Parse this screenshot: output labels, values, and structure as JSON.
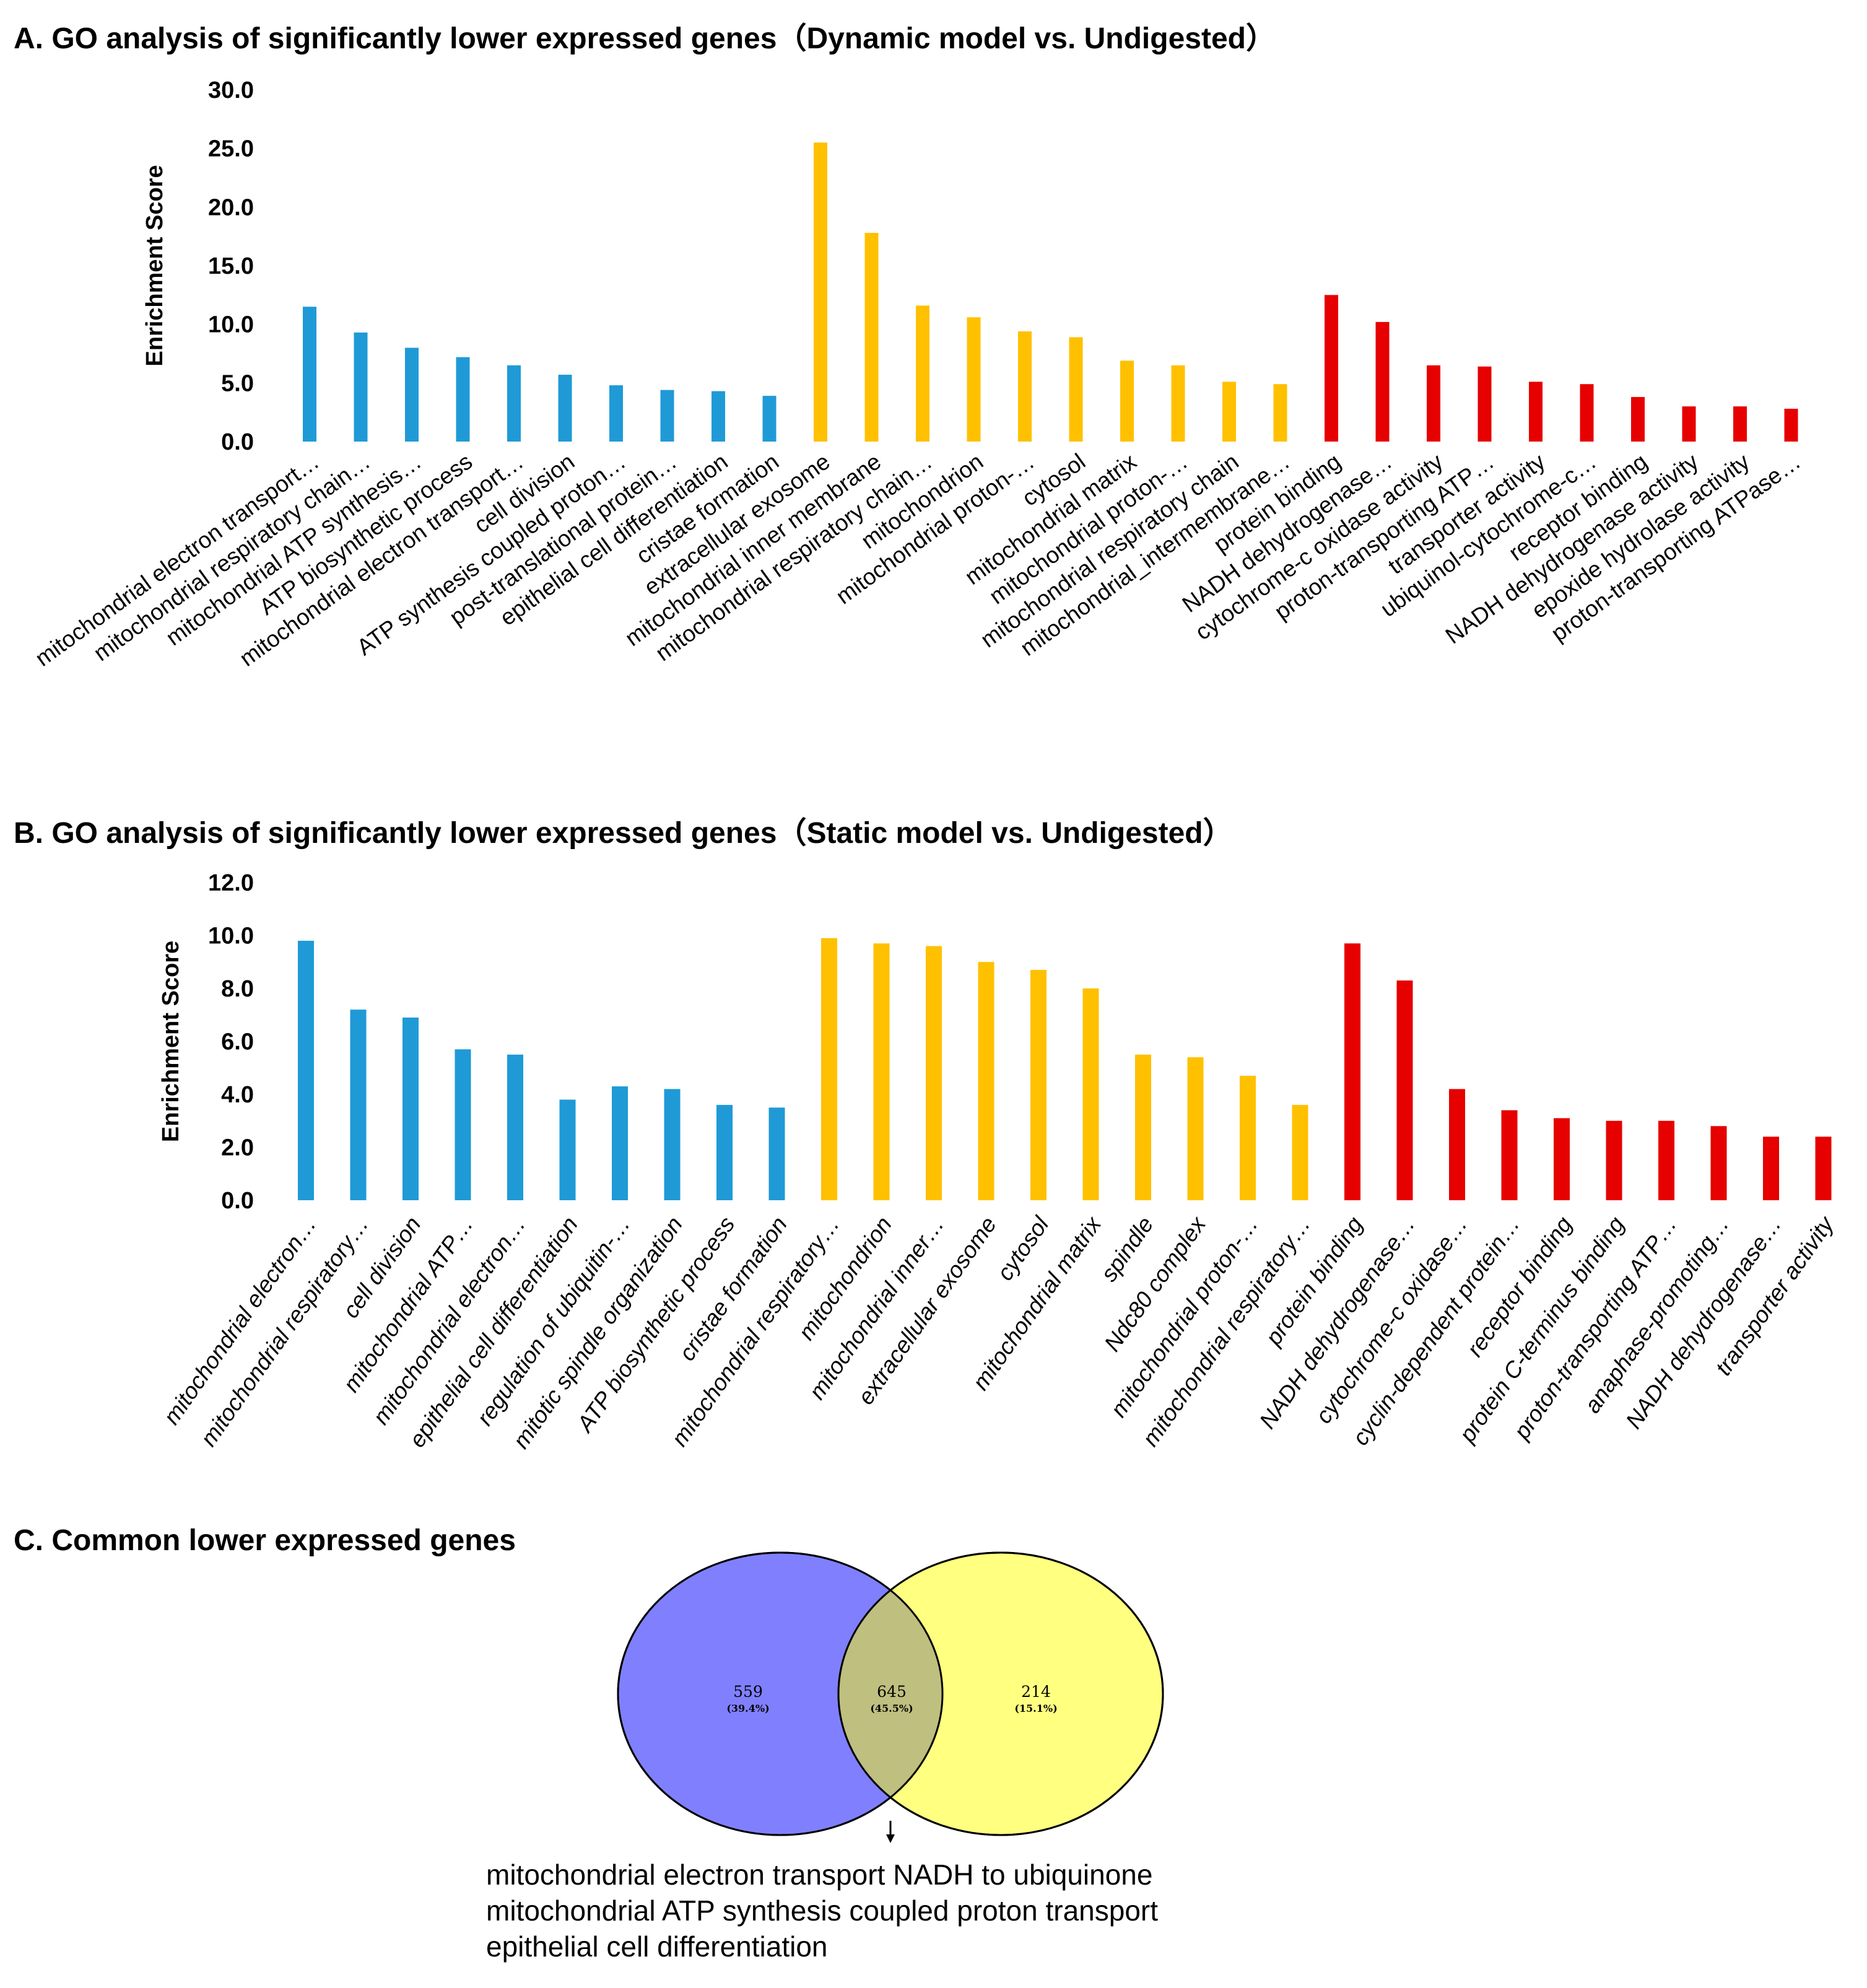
{
  "panels": {
    "a_title": "A. GO analysis of significantly lower expressed genes（Dynamic model vs. Undigested）",
    "b_title": "B. GO analysis of significantly lower expressed genes（Static model vs. Undigested）",
    "c_title": "C. Common lower expressed genes"
  },
  "colors": {
    "blue": "#1f9ad6",
    "orange": "#ffc000",
    "red": "#e60000",
    "venn_left": "#8080ff",
    "venn_right": "#ffff80",
    "venn_overlap": "#bfbf80"
  },
  "chart_data": [
    {
      "type": "bar",
      "title": "GO analysis of significantly lower expressed genes（Dynamic model vs. Undigested）",
      "ylabel": "Enrichment Score",
      "ylim": [
        0,
        30
      ],
      "yticks": [
        "0.0",
        "5.0",
        "10.0",
        "15.0",
        "20.0",
        "25.0",
        "30.0"
      ],
      "label_style": "normal",
      "categories": [
        "mitochondrial electron transport…",
        "mitochondrial respiratory chain…",
        "mitochondrial ATP synthesis…",
        "ATP biosynthetic process",
        "mitochondrial electron transport…",
        "cell division",
        "ATP synthesis coupled proton…",
        "post-translational protein…",
        "epithelial cell differentiation",
        "cristae formation",
        "extracellular exosome",
        "mitochondrial inner membrane",
        "mitochondrial respiratory chain…",
        "mitochondrion",
        "mitochondrial proton-…",
        "cytosol",
        "mitochondrial matrix",
        "mitochondrial proton-…",
        "mitochondrial respiratory chain",
        "mitochondrial_intermembrane…",
        "protein binding",
        "NADH dehydrogenase…",
        "cytochrome-c oxidase activity",
        "proton-transporting ATP…",
        "transporter activity",
        "ubiquinol-cytochrome-c…",
        "receptor binding",
        "NADH dehydrogenase activity",
        "epoxide hydrolase activity",
        "proton-transporting ATPase…"
      ],
      "values": [
        11.5,
        9.3,
        8.0,
        7.2,
        6.5,
        5.7,
        4.8,
        4.4,
        4.3,
        3.9,
        25.5,
        17.8,
        11.6,
        10.6,
        9.4,
        8.9,
        6.9,
        6.5,
        5.1,
        4.9,
        12.5,
        10.2,
        6.5,
        6.4,
        5.1,
        4.9,
        3.8,
        3.0,
        3.0,
        2.8
      ],
      "groups": [
        "blue",
        "blue",
        "blue",
        "blue",
        "blue",
        "blue",
        "blue",
        "blue",
        "blue",
        "blue",
        "orange",
        "orange",
        "orange",
        "orange",
        "orange",
        "orange",
        "orange",
        "orange",
        "orange",
        "orange",
        "red",
        "red",
        "red",
        "red",
        "red",
        "red",
        "red",
        "red",
        "red",
        "red"
      ]
    },
    {
      "type": "bar",
      "title": "GO analysis of significantly lower expressed genes（Static model vs. Undigested）",
      "ylabel": "Enrichment Score",
      "ylim": [
        0,
        12
      ],
      "yticks": [
        "0.0",
        "2.0",
        "4.0",
        "6.0",
        "8.0",
        "10.0",
        "12.0"
      ],
      "label_style": "italic",
      "categories": [
        "mitochondrial electron…",
        "mitochondrial respiratory…",
        "cell division",
        "mitochondrial ATP…",
        "mitochondrial electron…",
        "epithelial cell differentiation",
        "regulation of ubiquitin-…",
        "mitotic spindle organization",
        "ATP biosynthetic process",
        "cristae formation",
        "mitochondrial respiratory…",
        "mitochondrion",
        "mitochondrial inner…",
        "extracellular exosome",
        "cytosol",
        "mitochondrial matrix",
        "spindle",
        "Ndc80 complex",
        "mitochondrial proton-…",
        "mitochondrial respiratory…",
        "protein binding",
        "NADH dehydrogenase…",
        "cytochrome-c oxidase…",
        "cyclin-dependent protein…",
        "receptor binding",
        "protein C-terminus binding",
        "proton-transporting ATP…",
        "anaphase-promoting…",
        "NADH dehydrogenase…",
        "transporter activity"
      ],
      "values": [
        9.8,
        7.2,
        6.9,
        5.7,
        5.5,
        3.8,
        4.3,
        4.2,
        3.6,
        3.5,
        9.9,
        9.7,
        9.6,
        9.0,
        8.7,
        8.0,
        5.5,
        5.4,
        4.7,
        3.6,
        9.7,
        8.3,
        4.2,
        3.4,
        3.1,
        3.0,
        3.0,
        2.8,
        2.4,
        2.4
      ],
      "groups": [
        "blue",
        "blue",
        "blue",
        "blue",
        "blue",
        "blue",
        "blue",
        "blue",
        "blue",
        "blue",
        "orange",
        "orange",
        "orange",
        "orange",
        "orange",
        "orange",
        "orange",
        "orange",
        "orange",
        "orange",
        "red",
        "red",
        "red",
        "red",
        "red",
        "red",
        "red",
        "red",
        "red",
        "red"
      ]
    }
  ],
  "venn": {
    "left_count": "559",
    "left_pct": "(39.4%)",
    "overlap_count": "645",
    "overlap_pct": "(45.5%)",
    "right_count": "214",
    "right_pct": "(15.1%)"
  },
  "common_terms": [
    "mitochondrial electron transport NADH to ubiquinone",
    "mitochondrial ATP synthesis coupled proton transport",
    "epithelial cell differentiation"
  ]
}
